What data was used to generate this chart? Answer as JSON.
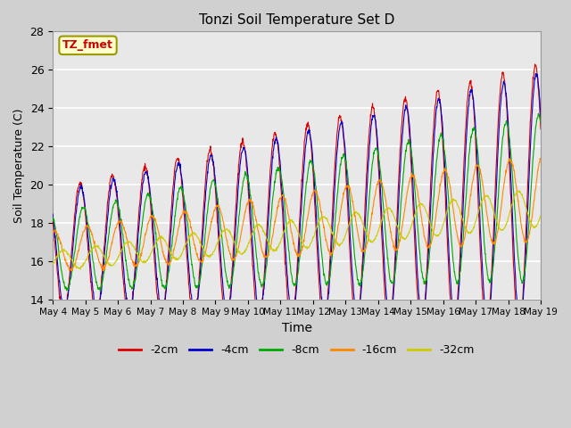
{
  "title": "Tonzi Soil Temperature Set D",
  "xlabel": "Time",
  "ylabel": "Soil Temperature (C)",
  "ylim": [
    14,
    28
  ],
  "n_days": 15,
  "pts_per_day": 96,
  "annotation": "TZ_fmet",
  "annotation_bg": "#ffffcc",
  "annotation_border": "#999900",
  "annotation_text_color": "#cc0000",
  "legend_entries": [
    "-2cm",
    "-4cm",
    "-8cm",
    "-16cm",
    "-32cm"
  ],
  "legend_colors": [
    "#dd0000",
    "#0000cc",
    "#00aa00",
    "#ff8800",
    "#cccc00"
  ],
  "tick_labels_x": [
    "May 4",
    "May 5",
    "May 6",
    "May 7",
    "May 8",
    "May 9",
    "May 10",
    "May 11",
    "May 12",
    "May 13",
    "May 14",
    "May 15",
    "May 16",
    "May 17",
    "May 18",
    "May 19"
  ],
  "grid_color": "#ffffff",
  "fig_bg": "#d0d0d0",
  "axes_bg": "#e8e8e8"
}
